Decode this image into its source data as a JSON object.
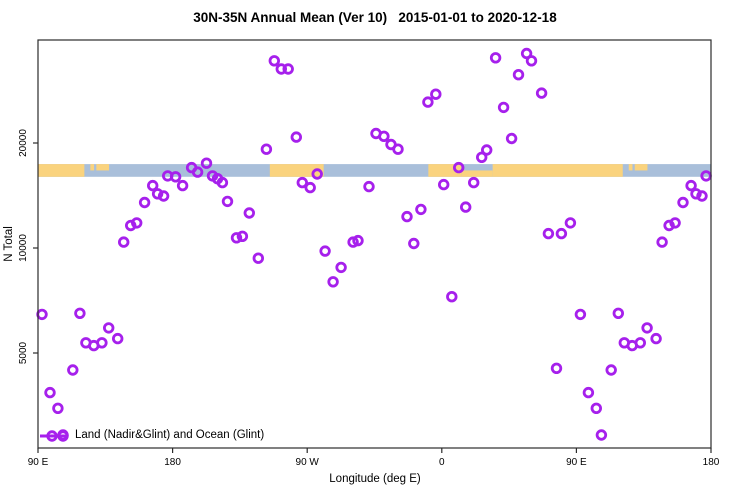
{
  "title": "30N-35N Annual Mean (Ver 10)   2015-01-01 to 2020-12-18",
  "chart_data": {
    "type": "scatter",
    "title": "30N-35N Annual Mean (Ver 10)   2015-01-01 to 2020-12-18",
    "xlabel": "Longitude (deg E)",
    "ylabel": "N Total",
    "x_axis": {
      "note": "longitude axis wraps eastward: 90E -> 180 -> 90W -> 0 -> 90E -> 180",
      "range_axis_deg": [
        90,
        540
      ],
      "ticks": [
        {
          "pos": 90,
          "label": "90 E"
        },
        {
          "pos": 180,
          "label": "180"
        },
        {
          "pos": 270,
          "label": "90 W"
        },
        {
          "pos": 360,
          "label": "0"
        },
        {
          "pos": 450,
          "label": "90 E"
        },
        {
          "pos": 540,
          "label": "180"
        }
      ]
    },
    "y_axis": {
      "scale": "log",
      "ticks": [
        5000,
        10000,
        20000
      ],
      "range": [
        2600,
        39500
      ]
    },
    "grid": "off",
    "legend": {
      "label": "Land (Nadir&Glint) and Ocean (Glint)",
      "position": "bottom-left"
    },
    "marker": {
      "shape": "open-circle",
      "color": "#A620EC"
    },
    "map_band": {
      "comment": "world land/ocean strip for 30N-35N drawn across plot",
      "n_range": [
        16000,
        17400
      ],
      "ocean_color": "#A9BFDA",
      "land_color": "#FAD37E",
      "land_segments_deg": [
        [
          90,
          121
        ],
        [
          245,
          281
        ],
        [
          351,
          373
        ],
        [
          394,
          481
        ]
      ],
      "land_top_half_deg": [
        [
          125,
          127.5
        ],
        [
          129,
          137.5
        ],
        [
          485,
          487.5
        ],
        [
          489,
          497.5
        ]
      ],
      "land_bottom_half_deg": [
        [
          373,
          394
        ]
      ]
    },
    "points": [
      [
        -112,
        34400
      ],
      [
        -107.3,
        32600
      ],
      [
        -102.7,
        32600
      ],
      [
        36,
        35100
      ],
      [
        56.7,
        36100
      ],
      [
        60,
        34400
      ],
      [
        51.3,
        31400
      ],
      [
        66.7,
        27800
      ],
      [
        41.3,
        25300
      ],
      [
        -9.3,
        26200
      ],
      [
        -4,
        27600
      ],
      [
        46.7,
        20600
      ],
      [
        30,
        19100
      ],
      [
        -97.3,
        20800
      ],
      [
        -117.3,
        19200
      ],
      [
        -157.3,
        17500
      ],
      [
        -167.3,
        17000
      ],
      [
        -163.3,
        16500
      ],
      [
        -153.3,
        16100
      ],
      [
        -150,
        15800
      ],
      [
        -146.7,
        15400
      ],
      [
        176.7,
        16100
      ],
      [
        -178,
        16000
      ],
      [
        -173.3,
        15100
      ],
      [
        166.7,
        15100
      ],
      [
        170,
        14300
      ],
      [
        174,
        14100
      ],
      [
        161.3,
        13500
      ],
      [
        -143.3,
        13600
      ],
      [
        -128.7,
        12600
      ],
      [
        152,
        11600
      ],
      [
        156,
        11800
      ],
      [
        -137.3,
        10700
      ],
      [
        -133.3,
        10800
      ],
      [
        147.3,
        10400
      ],
      [
        -122.7,
        9350
      ],
      [
        -44,
        21300
      ],
      [
        -38.7,
        20900
      ],
      [
        -34,
        19800
      ],
      [
        -29.3,
        19200
      ],
      [
        26.7,
        18200
      ],
      [
        11.3,
        17000
      ],
      [
        -93.3,
        15400
      ],
      [
        -88,
        14900
      ],
      [
        -83.3,
        16300
      ],
      [
        -48.7,
        15000
      ],
      [
        1.3,
        15200
      ],
      [
        21.3,
        15400
      ],
      [
        16,
        13100
      ],
      [
        -14,
        12900
      ],
      [
        -23.3,
        12300
      ],
      [
        -18.7,
        10300
      ],
      [
        -59.3,
        10400
      ],
      [
        -56,
        10500
      ],
      [
        -78,
        9800
      ],
      [
        -67.3,
        8800
      ],
      [
        -72.7,
        8000
      ],
      [
        6.7,
        7250
      ],
      [
        86,
        11800
      ],
      [
        71.3,
        11000
      ],
      [
        80,
        11000
      ],
      [
        92.7,
        6450
      ],
      [
        118,
        6500
      ],
      [
        137.3,
        5900
      ],
      [
        122,
        5350
      ],
      [
        127.3,
        5250
      ],
      [
        132.7,
        5350
      ],
      [
        143.3,
        5500
      ],
      [
        113.3,
        4470
      ],
      [
        98,
        3850
      ],
      [
        103.3,
        3470
      ],
      [
        106.7,
        2910
      ],
      [
        76.7,
        4520
      ]
    ]
  }
}
